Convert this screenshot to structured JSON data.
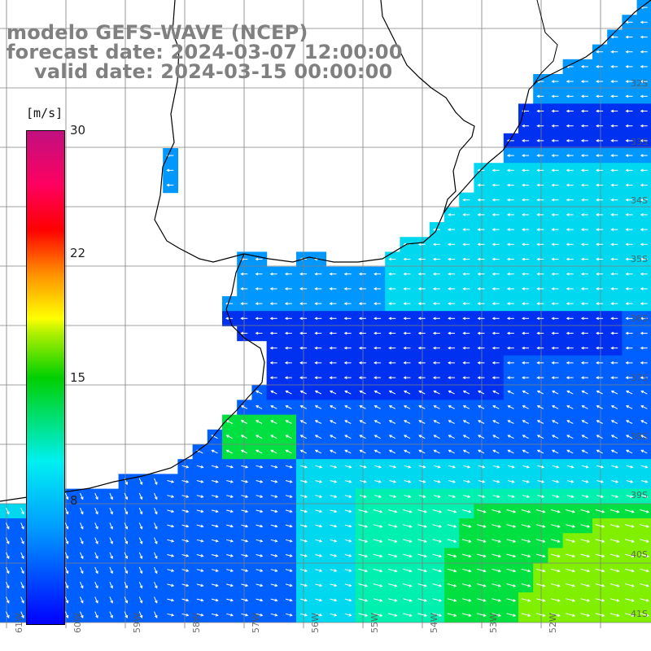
{
  "title": {
    "line1": "modelo GEFS-WAVE (NCEP)",
    "line2": "forecast date: 2024-03-07 12:00:00",
    "line3": "valid date: 2024-03-15 00:00:00"
  },
  "colorbar": {
    "units": "[m/s]",
    "ticks": [
      "30",
      "22",
      "15",
      "8"
    ],
    "colors": [
      "#0000ff",
      "#00a0ff",
      "#00f0f0",
      "#00d000",
      "#ffff00",
      "#ff0000",
      "#c01080"
    ]
  },
  "map": {
    "lat_labels": [
      "32S",
      "33S",
      "34S",
      "35S",
      "36S",
      "37S",
      "38S",
      "39S",
      "40S",
      "41S"
    ],
    "lon_labels": [
      "61W",
      "60W",
      "59W",
      "58W",
      "57W",
      "56W",
      "55W",
      "54W",
      "53W",
      "52W"
    ],
    "grid_lines": true,
    "ocean_field_colors": {
      "dark_blue": "#0030f0",
      "blue": "#0060ff",
      "light_blue": "#0098ff",
      "cyan": "#00d8f0",
      "aqua_green": "#00f0b0",
      "green": "#00e040",
      "yellow_green": "#80f000"
    }
  }
}
